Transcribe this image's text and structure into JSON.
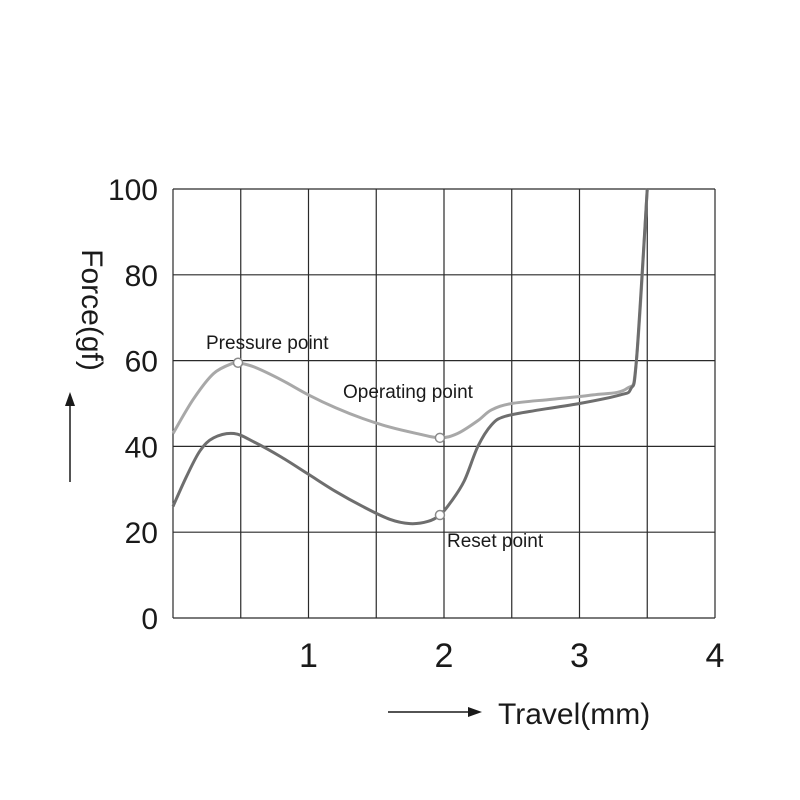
{
  "chart_data": {
    "type": "line",
    "xlabel": "Travel(mm)",
    "ylabel": "Force(gf)",
    "xlim": [
      0,
      4
    ],
    "ylim": [
      0,
      100
    ],
    "x_ticks": [
      "1",
      "2",
      "3",
      "4"
    ],
    "y_ticks": [
      "0",
      "20",
      "40",
      "60",
      "80",
      "100"
    ],
    "grid": true,
    "series": [
      {
        "color": "#a8a8a8",
        "x": [
          0.0,
          0.15,
          0.3,
          0.45,
          0.48,
          0.6,
          0.8,
          1.0,
          1.2,
          1.4,
          1.6,
          1.8,
          1.97,
          2.1,
          2.25,
          2.35,
          2.5,
          2.8,
          3.1,
          3.35,
          3.42,
          3.5
        ],
        "y": [
          43,
          51,
          57,
          59.5,
          59.5,
          58.5,
          55.5,
          52,
          49,
          46.5,
          44.5,
          43,
          42,
          43,
          46,
          48.5,
          50,
          51,
          52,
          53.5,
          60,
          100
        ]
      },
      {
        "color": "#6e6e6e",
        "x": [
          0.0,
          0.1,
          0.2,
          0.3,
          0.45,
          0.6,
          0.8,
          1.0,
          1.2,
          1.4,
          1.6,
          1.75,
          1.88,
          1.97,
          2.05,
          2.15,
          2.25,
          2.35,
          2.45,
          2.7,
          3.0,
          3.3,
          3.38,
          3.42,
          3.5
        ],
        "y": [
          26,
          33,
          39,
          42,
          43,
          41,
          37.5,
          33.5,
          29.5,
          26,
          23,
          22,
          22.5,
          24,
          27,
          32,
          40,
          45,
          47,
          48.5,
          50,
          52,
          53.5,
          60,
          100
        ]
      }
    ],
    "annotations": [
      {
        "text": "Pressure point",
        "x": 0.48,
        "y": 59.5
      },
      {
        "text": "Operating point",
        "x": 1.97,
        "y": 42
      },
      {
        "text": "Reset point",
        "x": 1.97,
        "y": 24
      }
    ]
  }
}
